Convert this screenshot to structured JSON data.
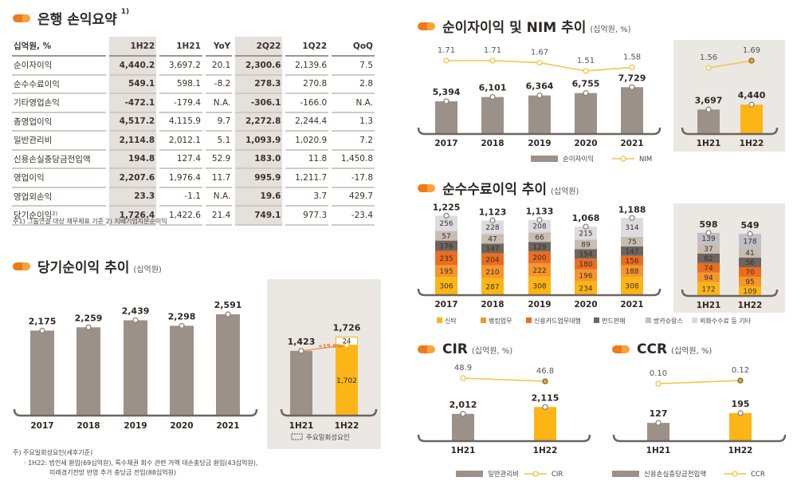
{
  "summary": {
    "title": "은행 손익요약",
    "sup": "1)",
    "headers": [
      "십억원, %",
      "1H22",
      "1H21",
      "YoY",
      "2Q22",
      "1Q22",
      "QoQ"
    ],
    "rows": [
      {
        "label": "순이자이익",
        "values": [
          "4,440.2",
          "3,697.2",
          "20.1",
          "2,300.6",
          "2,139.6",
          "7.5"
        ]
      },
      {
        "label": "순수수료이익",
        "values": [
          "549.1",
          "598.1",
          "-8.2",
          "278.3",
          "270.8",
          "2.8"
        ]
      },
      {
        "label": "기타영업손익",
        "values": [
          "-472.1",
          "-179.4",
          "N.A.",
          "-306.1",
          "-166.0",
          "N.A."
        ]
      },
      {
        "label": "총영업이익",
        "values": [
          "4,517.2",
          "4,115.9",
          "9.7",
          "2,272.8",
          "2,244.4",
          "1.3"
        ]
      },
      {
        "label": "일반관리비",
        "values": [
          "2,114.8",
          "2,012.1",
          "5.1",
          "1,093.9",
          "1,020.9",
          "7.2"
        ]
      },
      {
        "label": "신용손실충당금전입액",
        "values": [
          "194.8",
          "127.4",
          "52.9",
          "183.0",
          "11.8",
          "1,450.8"
        ]
      },
      {
        "label": "영업이익",
        "values": [
          "2,207.6",
          "1,976.4",
          "11.7",
          "995.9",
          "1,211.7",
          "-17.8"
        ]
      },
      {
        "label": "영업외손익",
        "values": [
          "23.3",
          "-1.1",
          "N.A.",
          "19.6",
          "3.7",
          "429.7"
        ]
      },
      {
        "label": "당기순이익²⁾",
        "values": [
          "1,726.4",
          "1,422.6",
          "21.4",
          "749.1",
          "977.3",
          "-23.4"
        ]
      }
    ],
    "footnote": "주1) 그룹연결 대상 재무제표 기준   2) 지배기업지분순이익"
  },
  "net_income": {
    "title": "당기순이익 추이",
    "unit": "(십억원)",
    "legend_onetime": "주요일회성요인",
    "note_title": "주) 주요일회성요인(세후기준)",
    "note_line1": "· 1H22: 법인세 환입(69십억원), 특수채권 회수 관련 거액 대손충당금 환입(43십억원),",
    "note_line2": "미래경기전망 반영 추가 충당금 전입(88십억원)"
  },
  "nim_section": {
    "title": "순이자이익 및 NIM 추이",
    "unit": "(십억원, %)"
  },
  "fee_section": {
    "title": "순수수료이익 추이",
    "unit": "(십억원)"
  },
  "cir_section": {
    "title": "CIR",
    "unit": "(십억원, %)"
  },
  "ccr_section": {
    "title": "CCR",
    "unit": "(십억원, %)"
  },
  "colors": {
    "bar_gray": "#9b9189",
    "bar_yellow": "#fbb515",
    "line": "#f2c447",
    "panel": "#ebe8e4",
    "accent_orange": "#f07a1a"
  },
  "chart_data": [
    {
      "type": "bar",
      "categories": [
        "2017",
        "2018",
        "2019",
        "2020",
        "2021"
      ],
      "values": [
        2175,
        2259,
        2439,
        2298,
        2591
      ]
    },
    {
      "type": "bar",
      "categories": [
        "1H21",
        "1H22"
      ],
      "values": [
        1423,
        1726
      ],
      "core_1H22": 1702,
      "onetime_1H22": 24,
      "growth_label": "+19.6%"
    },
    {
      "type": "bar+line",
      "categories": [
        "2017",
        "2018",
        "2019",
        "2020",
        "2021"
      ],
      "values": [
        5394,
        6101,
        6364,
        6755,
        7729
      ],
      "line_values": [
        1.71,
        1.71,
        1.67,
        1.51,
        1.58
      ],
      "legend": [
        "순이자이익",
        "NIM"
      ]
    },
    {
      "type": "bar+line",
      "categories": [
        "1H21",
        "1H22"
      ],
      "values": [
        3697,
        4440
      ],
      "line_values": [
        1.56,
        1.69
      ]
    },
    {
      "type": "stacked-bar",
      "categories": [
        "2017",
        "2018",
        "2019",
        "2020",
        "2021"
      ],
      "totals": [
        1225,
        1123,
        1133,
        1068,
        1188
      ],
      "series": [
        {
          "name": "신탁",
          "color": "#fbb515",
          "values": [
            306,
            287,
            308,
            234,
            308
          ]
        },
        {
          "name": "뱅킹업무",
          "color": "#f5962a",
          "values": [
            195,
            210,
            222,
            196,
            188
          ]
        },
        {
          "name": "신용카드업무대행",
          "color": "#ec6d1f",
          "values": [
            235,
            204,
            200,
            180,
            156
          ]
        },
        {
          "name": "펀드판매",
          "color": "#6e655e",
          "values": [
            176,
            147,
            129,
            154,
            147
          ]
        },
        {
          "name": "방카슈랑스",
          "color": "#c8bdb2",
          "values": [
            57,
            47,
            66,
            89,
            75
          ]
        },
        {
          "name": "외화수수료 등 기타",
          "color": "#dcdce0",
          "values": [
            256,
            228,
            208,
            215,
            314
          ]
        }
      ]
    },
    {
      "type": "stacked-bar",
      "categories": [
        "1H21",
        "1H22"
      ],
      "totals": [
        598,
        549
      ],
      "series": [
        {
          "name": "신탁",
          "color": "#fbb515",
          "values": [
            172,
            109
          ]
        },
        {
          "name": "뱅킹업무",
          "color": "#f5962a",
          "values": [
            94,
            95
          ]
        },
        {
          "name": "신용카드업무대행",
          "color": "#ec6d1f",
          "values": [
            74,
            70
          ]
        },
        {
          "name": "펀드판매",
          "color": "#6e655e",
          "values": [
            82,
            56
          ]
        },
        {
          "name": "방카슈랑스",
          "color": "#c8bdb2",
          "values": [
            37,
            41
          ]
        },
        {
          "name": "외화수수료 등 기타",
          "color": "#bfc0c6",
          "values": [
            139,
            178
          ]
        }
      ]
    },
    {
      "type": "bar+line",
      "categories": [
        "1H21",
        "1H22"
      ],
      "values": [
        2012,
        2115
      ],
      "line_values": [
        48.9,
        46.8
      ],
      "legend": [
        "일반관리비",
        "CIR"
      ]
    },
    {
      "type": "bar+line",
      "categories": [
        "1H21",
        "1H22"
      ],
      "values": [
        127,
        195
      ],
      "line_values": [
        0.1,
        0.12
      ],
      "legend": [
        "신용손실충당금전입액",
        "CCR"
      ]
    }
  ]
}
